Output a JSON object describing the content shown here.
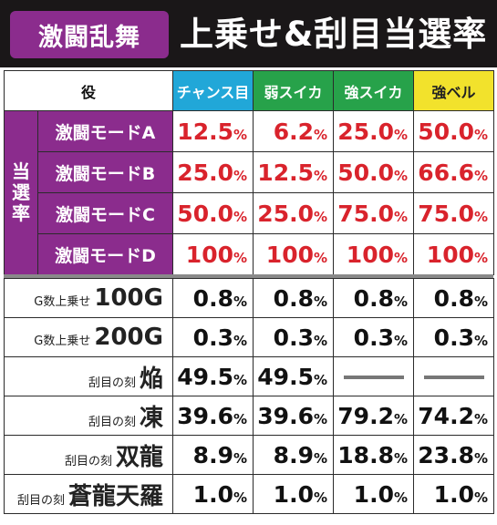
{
  "header": {
    "badge": "激闘乱舞",
    "title": "上乗せ&刮目当選率"
  },
  "columns": {
    "yaku": "役",
    "c1": "チャンス目",
    "c2": "弱スイカ",
    "c3": "強スイカ",
    "c4": "強ベル"
  },
  "side_label": [
    "当",
    "選",
    "率"
  ],
  "modes": [
    {
      "name": "激闘モードA",
      "v": [
        "12.5",
        "6.2",
        "25.0",
        "50.0"
      ]
    },
    {
      "name": "激闘モードB",
      "v": [
        "25.0",
        "12.5",
        "50.0",
        "66.6"
      ]
    },
    {
      "name": "激闘モードC",
      "v": [
        "50.0",
        "25.0",
        "75.0",
        "75.0"
      ]
    },
    {
      "name": "激闘モードD",
      "v": [
        "100",
        "100",
        "100",
        "100"
      ]
    }
  ],
  "unit": "%",
  "lower": [
    {
      "small": "G数上乗せ",
      "big": "100G",
      "v": [
        "0.8",
        "0.8",
        "0.8",
        "0.8"
      ]
    },
    {
      "small": "G数上乗せ",
      "big": "200G",
      "v": [
        "0.3",
        "0.3",
        "0.3",
        "0.3"
      ]
    },
    {
      "small": "刮目の刻",
      "big": "焔",
      "v": [
        "49.5",
        "49.5",
        null,
        null
      ]
    },
    {
      "small": "刮目の刻",
      "big": "凍",
      "v": [
        "39.6",
        "39.6",
        "79.2",
        "74.2"
      ]
    },
    {
      "small": "刮目の刻",
      "big": "双龍",
      "v": [
        "8.9",
        "8.9",
        "18.8",
        "23.8"
      ]
    },
    {
      "small": "刮目の刻",
      "big": "蒼龍天羅",
      "v": [
        "1.0",
        "1.0",
        "1.0",
        "1.0"
      ]
    }
  ],
  "colors": {
    "header_bg": "#1a1718",
    "purple": "#8b2c8d",
    "chance": "#21a7d8",
    "suika": "#27a24a",
    "bell": "#f2e22c",
    "red": "#d9232c"
  }
}
